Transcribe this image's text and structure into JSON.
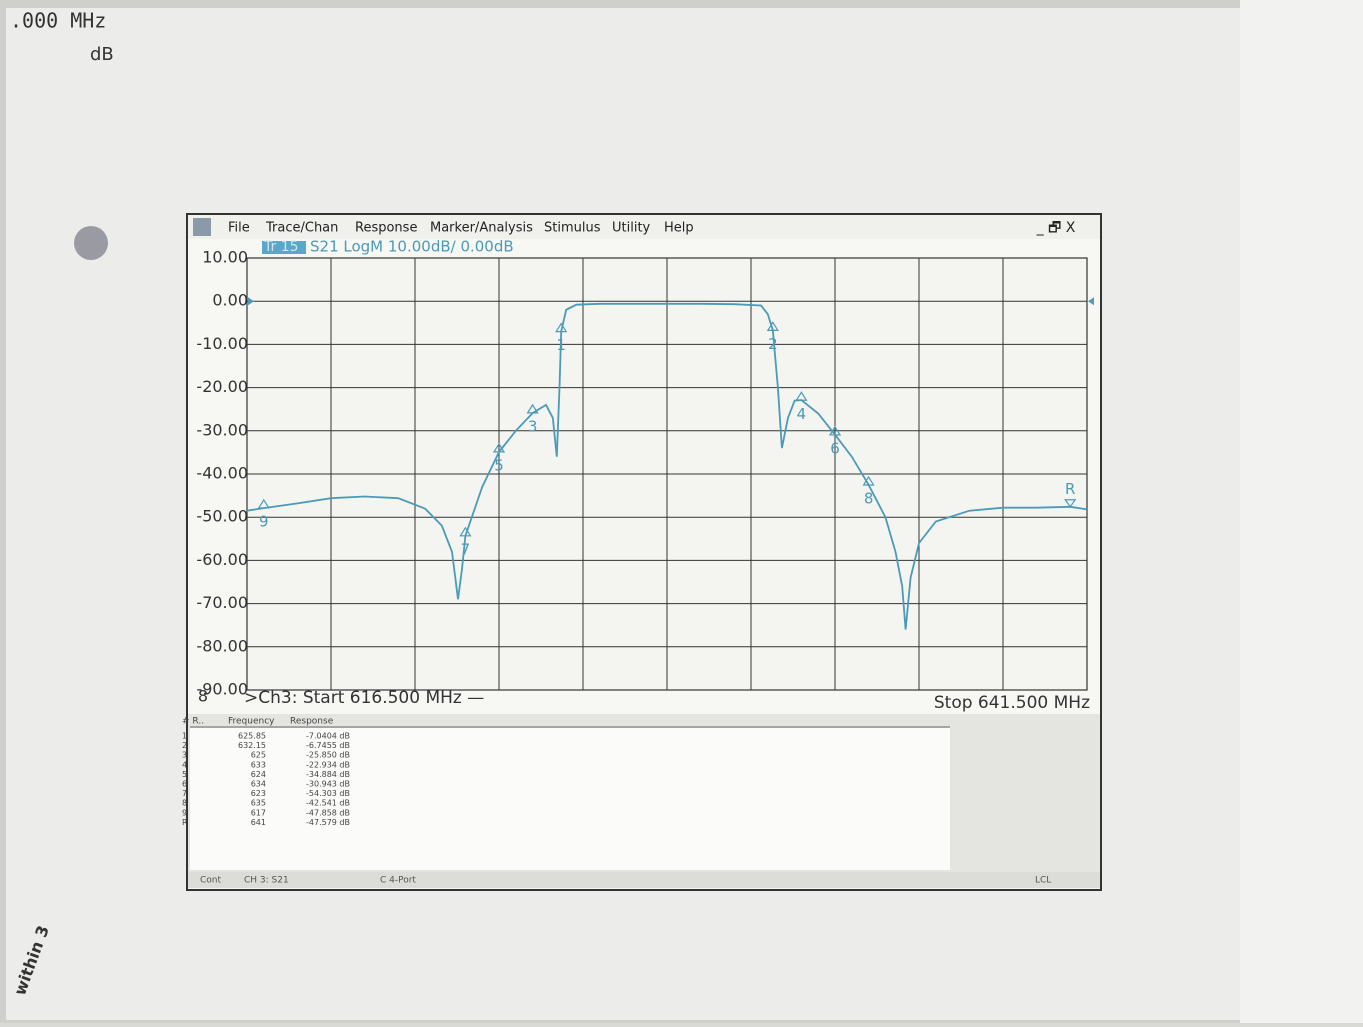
{
  "paper_notes": [
    ".000 MHz",
    "dB",
    "within 3"
  ],
  "menu": [
    "File",
    "Trace/Chan",
    "Response",
    "Marker/Analysis",
    "Stimulus",
    "Utility",
    "Help"
  ],
  "window_buttons": "_ 🗗 X",
  "chart_data": {
    "type": "line",
    "trace_id": "Tr 15",
    "trace_label": "S21 LogM 10.00dB/ 0.00dB",
    "channel": "8",
    "start_text": ">Ch3: Start 616.500 MHz —",
    "stop_text": "Stop 641.500 MHz",
    "xlim": [
      616.5,
      641.5
    ],
    "xticks": [
      616.5,
      619,
      621.5,
      624,
      626.5,
      629,
      631.5,
      634,
      636.5,
      639,
      641.5
    ],
    "ylim": [
      -90,
      10
    ],
    "yticks": [
      {
        "value": 10,
        "label": "10.00"
      },
      {
        "value": 0,
        "label": "0.00"
      },
      {
        "value": -10,
        "label": "-10.00"
      },
      {
        "value": -20,
        "label": "-20.00"
      },
      {
        "value": -30,
        "label": "-30.00"
      },
      {
        "value": -40,
        "label": "-40.00"
      },
      {
        "value": -50,
        "label": "-50.00"
      },
      {
        "value": -60,
        "label": "-60.00"
      },
      {
        "value": -70,
        "label": "-70.00"
      },
      {
        "value": -80,
        "label": "-80.00"
      },
      {
        "value": -90,
        "label": "-90.00"
      }
    ],
    "grid": true,
    "x": [
      616.5,
      617,
      618,
      619,
      620,
      621,
      621.8,
      622.3,
      622.6,
      622.78,
      622.9,
      623,
      623.5,
      624,
      624.5,
      625,
      625.4,
      625.6,
      625.72,
      625.8,
      625.85,
      626,
      626.3,
      627,
      628,
      629,
      630,
      631,
      631.8,
      632,
      632.15,
      632.3,
      632.42,
      632.6,
      632.8,
      633,
      633.5,
      634,
      634.5,
      635,
      635.5,
      635.8,
      636,
      636.1,
      636.25,
      636.5,
      637,
      638,
      639,
      640,
      641,
      641.5
    ],
    "series": [
      {
        "color": "#4a9ab8",
        "values": [
          -48.5,
          -47.9,
          -46.8,
          -45.6,
          -45.2,
          -45.6,
          -48,
          -52,
          -58,
          -69,
          -62,
          -54.3,
          -43,
          -34.9,
          -30,
          -25.9,
          -24,
          -27,
          -36,
          -20,
          -7.0,
          -2,
          -0.8,
          -0.6,
          -0.6,
          -0.6,
          -0.6,
          -0.7,
          -1,
          -3,
          -6.7,
          -20,
          -34,
          -27,
          -23,
          -22.9,
          -26,
          -30.9,
          -36,
          -42.5,
          -50,
          -58,
          -66,
          -76,
          -64,
          -56,
          -51,
          -48.5,
          -47.8,
          -47.8,
          -47.6,
          -48.2
        ]
      }
    ],
    "markers": [
      {
        "label": "1",
        "x": 625.85,
        "y": -7.0404
      },
      {
        "label": "2",
        "x": 632.15,
        "y": -6.7455
      },
      {
        "label": "3",
        "x": 625,
        "y": -25.85
      },
      {
        "label": "4",
        "x": 633,
        "y": -22.934
      },
      {
        "label": "5",
        "x": 624,
        "y": -34.884
      },
      {
        "label": "6",
        "x": 634,
        "y": -30.943
      },
      {
        "label": "7",
        "x": 623,
        "y": -54.303
      },
      {
        "label": "8",
        "x": 635,
        "y": -42.541
      },
      {
        "label": "9",
        "x": 617,
        "y": -47.858
      },
      {
        "label": "R",
        "x": 641,
        "y": -47.579
      }
    ]
  },
  "marker_table": {
    "header": [
      "# R..",
      "Frequency",
      "Response"
    ],
    "rows": [
      [
        "1",
        "625.85",
        "-7.0404 dB"
      ],
      [
        "2",
        "632.15",
        "-6.7455 dB"
      ],
      [
        "3",
        "625",
        "-25.850 dB"
      ],
      [
        "4",
        "633",
        "-22.934 dB"
      ],
      [
        "5",
        "624",
        "-34.884 dB"
      ],
      [
        "6",
        "634",
        "-30.943 dB"
      ],
      [
        "7",
        "623",
        "-54.303 dB"
      ],
      [
        "8",
        "635",
        "-42.541 dB"
      ],
      [
        "9",
        "617",
        "-47.858 dB"
      ],
      [
        "R",
        "641",
        "-47.579 dB"
      ]
    ]
  },
  "status_bar": [
    "Cont",
    "CH 3: S21",
    "C 4-Port",
    "LCL"
  ]
}
